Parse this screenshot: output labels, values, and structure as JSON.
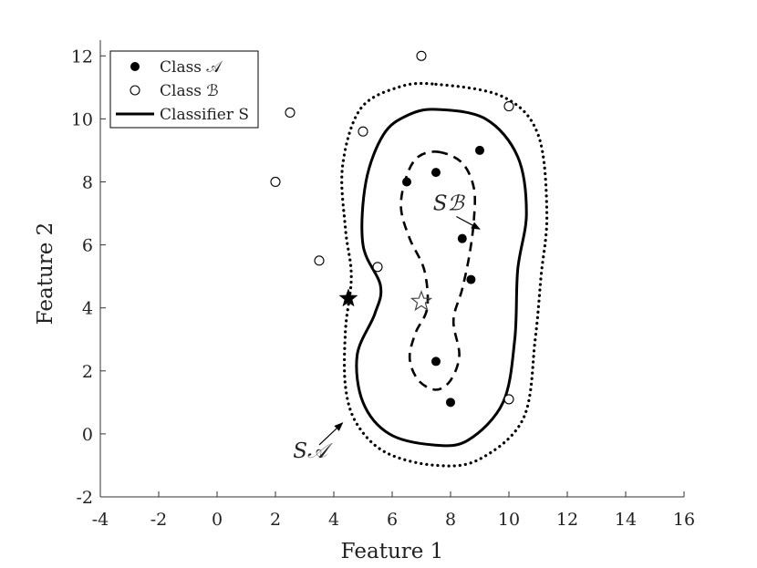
{
  "chart_data": {
    "type": "scatter",
    "xlabel": "Feature 1",
    "ylabel": "Feature 2",
    "xlim": [
      -4,
      16
    ],
    "ylim": [
      -2,
      12.5
    ],
    "xticks": [
      -4,
      -2,
      0,
      2,
      4,
      6,
      8,
      10,
      12,
      14,
      16
    ],
    "yticks": [
      -2,
      0,
      2,
      4,
      6,
      8,
      10,
      12
    ],
    "grid": false,
    "legend": {
      "position": "top-left",
      "entries": [
        {
          "label": "Class 𝒜",
          "marker": "filled-circle"
        },
        {
          "label": "Class ℬ",
          "marker": "open-circle"
        },
        {
          "label": "Classifier S",
          "marker": "solid-line"
        }
      ]
    },
    "series": [
      {
        "name": "Class 𝒜",
        "marker": "filled-circle",
        "points": [
          [
            6.5,
            8.0
          ],
          [
            7.5,
            8.3
          ],
          [
            9.0,
            9.0
          ],
          [
            8.4,
            6.2
          ],
          [
            8.7,
            4.9
          ],
          [
            7.5,
            2.3
          ],
          [
            8.0,
            1.0
          ]
        ]
      },
      {
        "name": "Class ℬ",
        "marker": "open-circle",
        "points": [
          [
            7.0,
            12.0
          ],
          [
            2.5,
            10.2
          ],
          [
            10.0,
            10.4
          ],
          [
            5.0,
            9.6
          ],
          [
            2.0,
            8.0
          ],
          [
            3.5,
            5.5
          ],
          [
            5.5,
            5.3
          ],
          [
            10.0,
            1.1
          ]
        ]
      },
      {
        "name": "Classifier S",
        "style": "solid",
        "closed": true,
        "points": [
          [
            7.5,
            10.3
          ],
          [
            9.2,
            10.0
          ],
          [
            10.3,
            8.8
          ],
          [
            10.6,
            7.0
          ],
          [
            10.3,
            5.2
          ],
          [
            10.2,
            3.0
          ],
          [
            9.8,
            1.0
          ],
          [
            8.6,
            -0.2
          ],
          [
            7.4,
            -0.35
          ],
          [
            5.9,
            0.0
          ],
          [
            5.0,
            1.0
          ],
          [
            4.8,
            2.5
          ],
          [
            5.4,
            3.8
          ],
          [
            5.6,
            4.7
          ],
          [
            5.0,
            6.0
          ],
          [
            5.1,
            8.0
          ],
          [
            5.7,
            9.5
          ],
          [
            6.5,
            10.1
          ]
        ]
      },
      {
        "name": "S𝒜",
        "style": "dotted",
        "closed": true,
        "points": [
          [
            7.5,
            11.1
          ],
          [
            9.8,
            10.7
          ],
          [
            11.0,
            9.5
          ],
          [
            11.3,
            7.0
          ],
          [
            11.1,
            5.0
          ],
          [
            10.9,
            3.0
          ],
          [
            10.5,
            0.5
          ],
          [
            9.0,
            -0.8
          ],
          [
            7.5,
            -1.0
          ],
          [
            5.8,
            -0.6
          ],
          [
            4.8,
            0.3
          ],
          [
            4.4,
            1.5
          ],
          [
            4.4,
            3.3
          ],
          [
            4.6,
            5.0
          ],
          [
            4.4,
            6.5
          ],
          [
            4.3,
            8.5
          ],
          [
            4.9,
            10.3
          ],
          [
            6.2,
            11.0
          ]
        ]
      },
      {
        "name": "Sℬ",
        "style": "dashed",
        "closed": true,
        "points": [
          [
            7.6,
            8.95
          ],
          [
            8.4,
            8.6
          ],
          [
            8.8,
            7.8
          ],
          [
            8.8,
            6.8
          ],
          [
            8.65,
            5.7
          ],
          [
            8.4,
            4.6
          ],
          [
            8.1,
            3.6
          ],
          [
            8.3,
            2.5
          ],
          [
            8.0,
            1.7
          ],
          [
            7.5,
            1.4
          ],
          [
            6.9,
            1.7
          ],
          [
            6.6,
            2.4
          ],
          [
            6.8,
            3.2
          ],
          [
            7.2,
            4.0
          ],
          [
            7.1,
            5.2
          ],
          [
            6.6,
            6.2
          ],
          [
            6.3,
            7.2
          ],
          [
            6.5,
            8.2
          ],
          [
            6.9,
            8.8
          ]
        ]
      }
    ],
    "stars": [
      {
        "point": [
          4.5,
          4.3
        ],
        "fill": "filled"
      },
      {
        "point": [
          7.0,
          4.2
        ],
        "fill": "open"
      }
    ],
    "annotations": [
      {
        "text": "S𝒜",
        "text_at": [
          2.6,
          -0.75
        ],
        "arrow_from": [
          3.5,
          -0.35
        ],
        "arrow_to": [
          4.3,
          0.35
        ]
      },
      {
        "text": "Sℬ",
        "text_at": [
          7.4,
          7.1
        ],
        "arrow_from": [
          8.2,
          6.9
        ],
        "arrow_to": [
          9.0,
          6.5
        ]
      }
    ],
    "colors": {
      "ink": "#000000",
      "axis": "#333333",
      "background": "#ffffff"
    }
  }
}
